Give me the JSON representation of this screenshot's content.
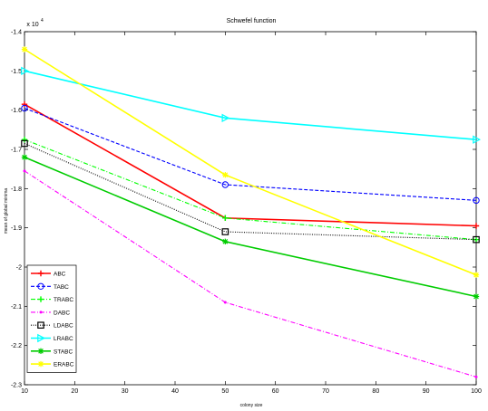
{
  "chart_data": {
    "type": "line",
    "title": "Schwefel function",
    "xlabel": "colony size",
    "ylabel": "mean of global minima",
    "y_scale_label": "x 10",
    "y_scale_exponent": "4",
    "x": [
      10,
      50,
      100
    ],
    "xlim": [
      10,
      100
    ],
    "ylim": [
      -2.3,
      -1.4
    ],
    "x_ticks": [
      "10",
      "20",
      "30",
      "40",
      "50",
      "60",
      "70",
      "80",
      "90",
      "100"
    ],
    "y_ticks": [
      "-1.4",
      "-1.5",
      "-1.6",
      "-1.7",
      "-1.8",
      "-1.9",
      "-2",
      "-2.1",
      "-2.2",
      "-2.3"
    ],
    "grid": false,
    "legend_position": "bottom-left",
    "series": [
      {
        "name": "ABC",
        "values": [
          -1.585,
          -1.875,
          -1.895
        ],
        "color": "#ff0000",
        "marker": "plus",
        "dash": "solid"
      },
      {
        "name": "TABC",
        "values": [
          -1.595,
          -1.79,
          -1.83
        ],
        "color": "#0000ff",
        "marker": "circle",
        "dash": "dashed"
      },
      {
        "name": "TRABC",
        "values": [
          -1.675,
          -1.875,
          -1.93
        ],
        "color": "#00ff00",
        "marker": "plus",
        "dash": "dashdot"
      },
      {
        "name": "DABC",
        "values": [
          -1.755,
          -2.09,
          -2.28
        ],
        "color": "#ff00ff",
        "marker": "dot",
        "dash": "dashdot"
      },
      {
        "name": "LDABC",
        "values": [
          -1.685,
          -1.91,
          -1.93
        ],
        "color": "#000000",
        "marker": "square",
        "dash": "dotted"
      },
      {
        "name": "LRABC",
        "values": [
          -1.5,
          -1.62,
          -1.675
        ],
        "color": "#00ffff",
        "marker": "triangle",
        "dash": "solid"
      },
      {
        "name": "STABC",
        "values": [
          -1.72,
          -1.935,
          -2.075
        ],
        "color": "#00cc00",
        "marker": "star",
        "dash": "solid"
      },
      {
        "name": "ERABC",
        "values": [
          -1.445,
          -1.765,
          -2.02
        ],
        "color": "#ffff00",
        "marker": "star",
        "dash": "solid"
      }
    ]
  }
}
